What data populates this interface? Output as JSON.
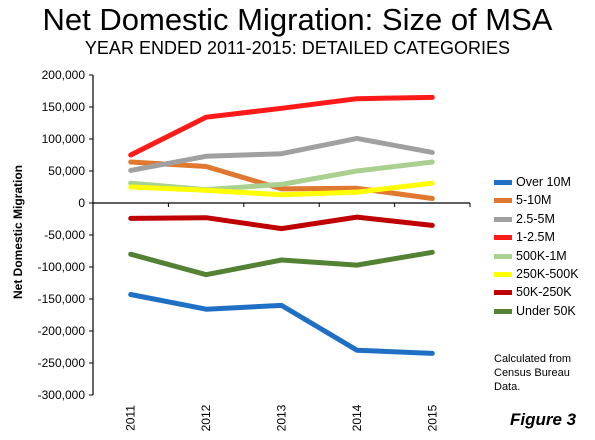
{
  "title": "Net Domestic Migration: Size of MSA",
  "subtitle": "YEAR ENDED 2011-2015: DETAILED CATEGORIES",
  "note_lines": [
    "Calculated from",
    "Census Bureau",
    "Data."
  ],
  "figure_label": "Figure 3",
  "chart_data": {
    "type": "line",
    "title": "Net Domestic Migration: Size of MSA",
    "subtitle": "YEAR ENDED 2011-2015: DETAILED CATEGORIES",
    "xlabel": "",
    "ylabel": "Net Domestic Migration",
    "x": [
      "2011",
      "2012",
      "2013",
      "2014",
      "2015"
    ],
    "ylim": [
      -300000,
      200000
    ],
    "y_ticks": [
      200000,
      150000,
      100000,
      50000,
      0,
      -50000,
      -100000,
      -150000,
      -200000,
      -250000,
      -300000
    ],
    "y_tick_labels": [
      "200,000",
      "150,000",
      "100,000",
      "50,000",
      "0",
      "-50,000",
      "-100,000",
      "-150,000",
      "-200,000",
      "-250,000",
      "-300,000"
    ],
    "grid": false,
    "legend_position": "right",
    "series": [
      {
        "name": "Over 10M",
        "color": "#1f6fc5",
        "values": [
          -143000,
          -166000,
          -160000,
          -230000,
          -235000
        ]
      },
      {
        "name": "5-10M",
        "color": "#e0782f",
        "values": [
          64000,
          57000,
          22000,
          23000,
          7000
        ]
      },
      {
        "name": "2.5-5M",
        "color": "#a0a0a0",
        "values": [
          51000,
          73000,
          77000,
          101000,
          79000
        ]
      },
      {
        "name": "1-2.5M",
        "color": "#ff1a1a",
        "values": [
          75000,
          134000,
          148000,
          163000,
          165000
        ]
      },
      {
        "name": "500K-1M",
        "color": "#a9d08e",
        "values": [
          31000,
          21000,
          29000,
          50000,
          64000
        ]
      },
      {
        "name": "250K-500K",
        "color": "#ffff00",
        "values": [
          25000,
          20000,
          13000,
          17000,
          31000
        ]
      },
      {
        "name": "50K-250K",
        "color": "#c00000",
        "values": [
          -24000,
          -23000,
          -40000,
          -22000,
          -35000
        ]
      },
      {
        "name": "Under 50K",
        "color": "#548235",
        "values": [
          -80000,
          -112000,
          -89000,
          -97000,
          -77000
        ]
      }
    ]
  }
}
